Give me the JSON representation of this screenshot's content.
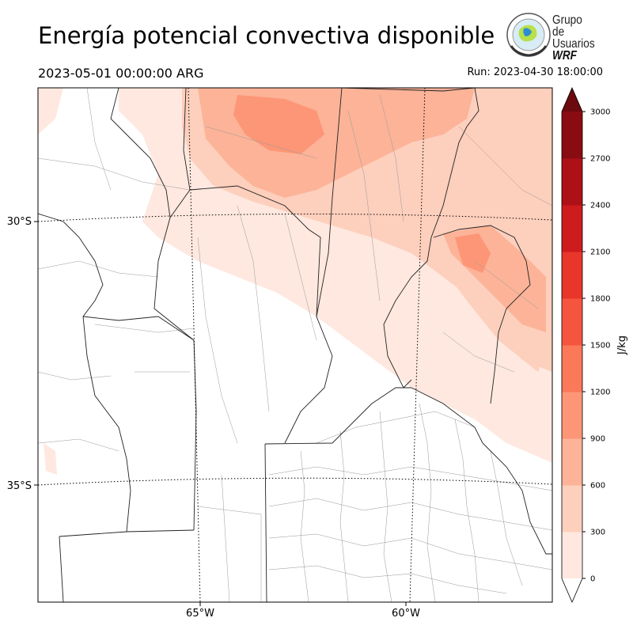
{
  "header": {
    "title": "Energía potencial convectiva disponible",
    "valid_time": "2023-05-01 00:00:00 ARG",
    "run_time": "Run: 2023-04-30 18:00:00"
  },
  "logo": {
    "line1": "Grupo de",
    "line2": "Usuarios",
    "line3": "WRF"
  },
  "map": {
    "variable": "CAPE",
    "lat_labels": [
      "30°S",
      "35°S"
    ],
    "lon_labels": [
      "65°W",
      "60°W"
    ]
  },
  "colorbar": {
    "unit": "J/kg",
    "ticks": [
      "0",
      "300",
      "600",
      "900",
      "1200",
      "1500",
      "1800",
      "2100",
      "2400",
      "2700",
      "3000"
    ],
    "colors": [
      "#fee8df",
      "#fdcfbd",
      "#fcb398",
      "#fc9676",
      "#fb7859",
      "#f5553f",
      "#e8362a",
      "#cd1b1e",
      "#ad1117",
      "#890c12",
      "#6b0a0f"
    ],
    "extend": "both"
  }
}
